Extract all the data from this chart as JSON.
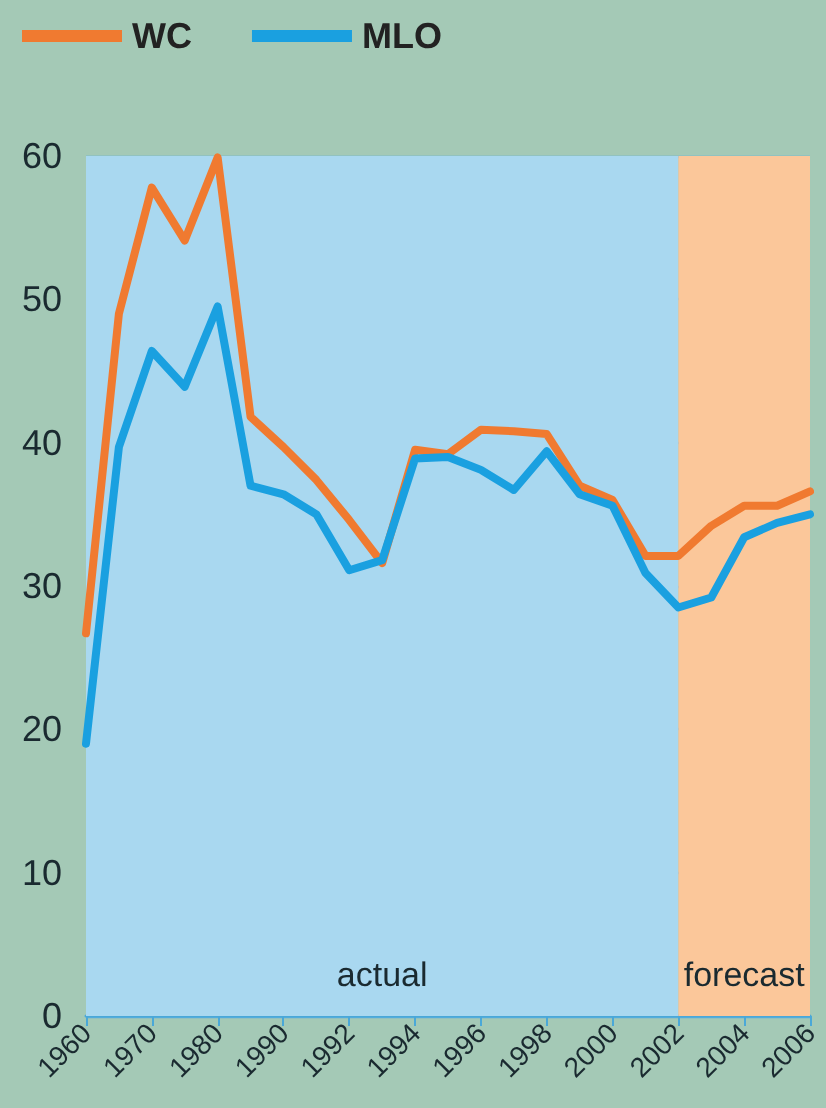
{
  "chart_data": {
    "type": "line",
    "categories": [
      "1960",
      null,
      "1970",
      null,
      "1980",
      null,
      "1990",
      null,
      "1992",
      null,
      "1994",
      null,
      "1996",
      null,
      "1998",
      null,
      "2000",
      null,
      "2002",
      null,
      "2004",
      null,
      "2006"
    ],
    "series": [
      {
        "name": "WC",
        "color": "#f07a30",
        "values": [
          26.7,
          49.0,
          57.8,
          54.1,
          59.9,
          41.8,
          39.7,
          37.4,
          34.6,
          31.6,
          39.5,
          39.2,
          40.9,
          40.8,
          40.6,
          37.0,
          36.0,
          32.1,
          32.1,
          34.2,
          35.6,
          35.6,
          36.6
        ]
      },
      {
        "name": "MLO",
        "color": "#1aa0e0",
        "values": [
          19.0,
          39.7,
          46.4,
          43.9,
          49.5,
          37.0,
          36.4,
          35.0,
          31.1,
          31.8,
          38.9,
          39.0,
          38.1,
          36.7,
          39.4,
          36.4,
          35.6,
          30.9,
          28.5,
          29.2,
          33.4,
          34.4,
          35.0
        ]
      }
    ],
    "ylim": [
      0,
      60
    ],
    "yticks": [
      0,
      10,
      20,
      30,
      40,
      50,
      60
    ],
    "grid": "y",
    "legend": "top left",
    "marker": "none",
    "line_style": "solid",
    "bands": [
      {
        "axis": "x",
        "from": "1960",
        "to": "2002",
        "label": "actual",
        "color": "#a9d8f0"
      },
      {
        "axis": "x",
        "from": "2002",
        "to": "2006",
        "label": "forecast",
        "color": "#fbc79a"
      }
    ]
  }
}
